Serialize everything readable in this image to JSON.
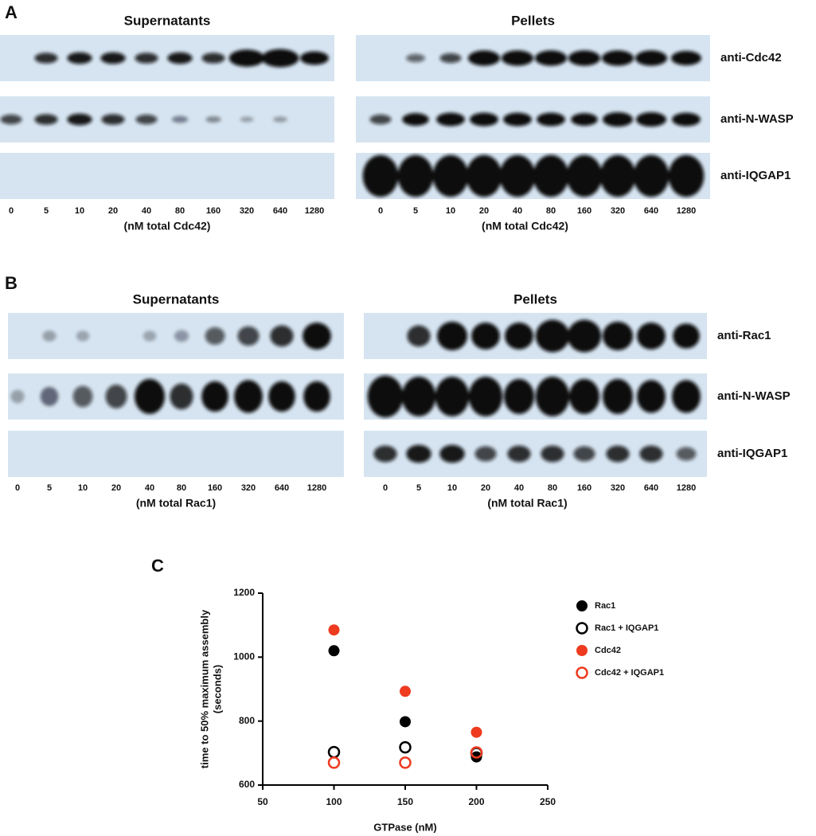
{
  "panel_a": {
    "label": "A",
    "supernatants_title": "Supernatants",
    "pellets_title": "Pellets",
    "rows": [
      "anti-Cdc42",
      "anti-N-WASP",
      "anti-IQGAP1"
    ],
    "lanes": [
      0,
      5,
      10,
      20,
      40,
      80,
      160,
      320,
      640,
      1280
    ],
    "unit_label": "(nM  total Cdc42)"
  },
  "panel_b": {
    "label": "B",
    "supernatants_title": "Supernatants",
    "pellets_title": "Pellets",
    "rows": [
      "anti-Rac1",
      "anti-N-WASP",
      "anti-IQGAP1"
    ],
    "lanes": [
      0,
      5,
      10,
      20,
      40,
      80,
      160,
      320,
      640,
      1280
    ],
    "unit_label": "(nM  total Rac1)"
  },
  "chart_data": {
    "type": "scatter",
    "panel_label": "C",
    "x_label": "GTPase (nM)",
    "y_label": [
      "time to 50% maximum assembly",
      "(seconds)"
    ],
    "x": [
      100,
      150,
      200
    ],
    "series": [
      {
        "name": "Rac1",
        "color": "#000000",
        "filled": true,
        "values": [
          1020,
          798,
          688
        ]
      },
      {
        "name": "Rac1 + IQGAP1",
        "color": "#000000",
        "filled": false,
        "values": [
          703,
          718,
          700
        ]
      },
      {
        "name": "Cdc42",
        "color": "#ee3b1f",
        "filled": true,
        "values": [
          1085,
          893,
          765
        ]
      },
      {
        "name": "Cdc42 + IQGAP1",
        "color": "#ee3b1f",
        "filled": false,
        "values": [
          670,
          670,
          702
        ]
      }
    ],
    "xlim": [
      50,
      250
    ],
    "xticks": [
      50,
      100,
      150,
      200,
      250
    ],
    "ylim": [
      600,
      1200
    ],
    "yticks": [
      600,
      800,
      1000,
      1200
    ]
  }
}
